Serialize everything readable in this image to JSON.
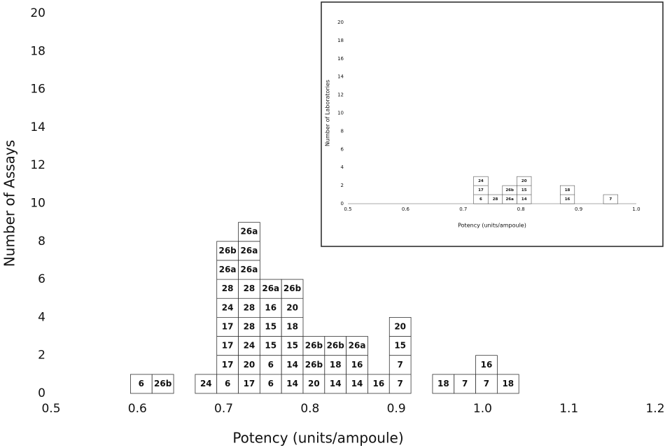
{
  "chart_data": [
    {
      "type": "histogram",
      "xlabel": "Potency (units/ampoule)",
      "ylabel": "Number of Assays",
      "xlim": [
        0.5,
        1.2
      ],
      "ylim": [
        0,
        20
      ],
      "xticks": [
        0.5,
        0.6,
        0.7,
        0.8,
        0.9,
        {
          "value": 1,
          "label": "1.0"
        },
        1.1,
        1.2
      ],
      "yticks": [
        0,
        2,
        4,
        6,
        8,
        10,
        12,
        14,
        16,
        18,
        20
      ],
      "bins": [
        0.592,
        0.617,
        0.642,
        0.667,
        0.692,
        0.717,
        0.742,
        0.767,
        0.792,
        0.817,
        0.842,
        0.867,
        0.892,
        0.917,
        0.942,
        0.967,
        0.992,
        1.017,
        1.042
      ],
      "counts": [
        1,
        1,
        0,
        1,
        8,
        9,
        6,
        6,
        3,
        3,
        3,
        1,
        4,
        0,
        1,
        1,
        2,
        1
      ],
      "labels": [
        [
          "6"
        ],
        [
          "26b"
        ],
        [],
        [
          "24"
        ],
        [
          "6",
          "17",
          "17",
          "17",
          "24",
          "28",
          "26a",
          "26b"
        ],
        [
          "17",
          "20",
          "24",
          "28",
          "28",
          "28",
          "26a",
          "26a",
          "26a"
        ],
        [
          "6",
          "6",
          "15",
          "15",
          "16",
          "26a"
        ],
        [
          "14",
          "14",
          "15",
          "18",
          "20",
          "26b"
        ],
        [
          "20",
          "26b",
          "26b"
        ],
        [
          "14",
          "18",
          "26b"
        ],
        [
          "14",
          "16",
          "26a"
        ],
        [
          "16"
        ],
        [
          "7",
          "7",
          "15",
          "20"
        ],
        [],
        [
          "18"
        ],
        [
          "7"
        ],
        [
          "7",
          "16"
        ],
        [
          "18"
        ]
      ],
      "color": "#ffffff"
    },
    {
      "type": "histogram",
      "xlabel": "Potency (units/ampoule)",
      "ylabel": "Number of Laboratories",
      "xlim": [
        0.5,
        1.0
      ],
      "ylim": [
        0,
        20
      ],
      "xticks": [
        0.5,
        0.6,
        0.7,
        0.8,
        0.9,
        {
          "value": 1,
          "label": "1.0"
        }
      ],
      "yticks": [
        0,
        2,
        4,
        6,
        8,
        10,
        12,
        14,
        16,
        18,
        20
      ],
      "bins": [
        0.718,
        0.743,
        0.768,
        0.793,
        0.818,
        0.843,
        0.868,
        0.893,
        0.918,
        0.943,
        0.968
      ],
      "counts": [
        3,
        1,
        2,
        3,
        0,
        0,
        2,
        0,
        0,
        1
      ],
      "labels": [
        [
          "6",
          "17",
          "24"
        ],
        [
          "28"
        ],
        [
          "26a",
          "26b"
        ],
        [
          "14",
          "15",
          "20"
        ],
        [],
        [],
        [
          "16",
          "18"
        ],
        [],
        [],
        [
          "7"
        ]
      ],
      "color": "#ffffff"
    }
  ]
}
